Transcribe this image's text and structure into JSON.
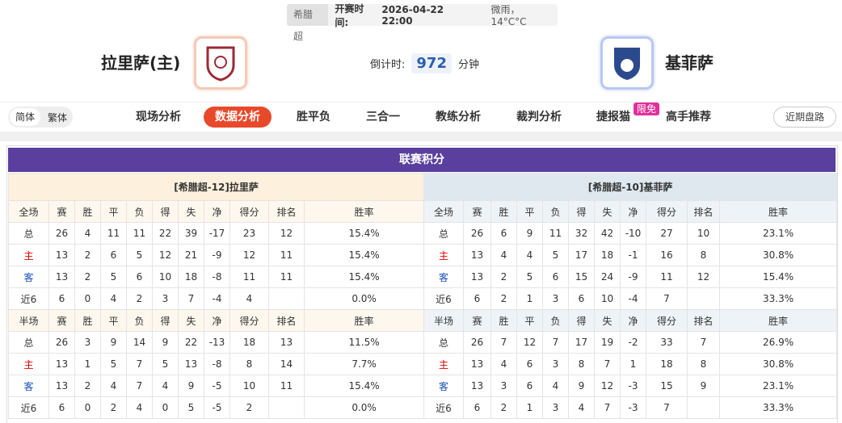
{
  "header": {
    "league": "希腊超",
    "kickoff_label": "开赛时间:",
    "kickoff_time": "2026-04-22 22:00",
    "weather": "微雨， 14°C°C",
    "home_team": "拉里萨(主)",
    "away_team": "基菲萨",
    "countdown_label": "倒计时:",
    "countdown_value": "972",
    "countdown_unit": "分钟"
  },
  "nav": {
    "languages": [
      "简体",
      "繁体"
    ],
    "tabs": [
      "现场分析",
      "数据分析",
      "胜平负",
      "三合一",
      "教练分析",
      "裁判分析",
      "捷报猫",
      "高手推荐"
    ],
    "tab_badge": "限免",
    "recent_button": "近期盘路"
  },
  "standings": {
    "title": "联赛积分",
    "panels": [
      {
        "title": "[希腊超-12]拉里萨",
        "tables": [
          {
            "header": [
              "全场",
              "赛",
              "胜",
              "平",
              "负",
              "得",
              "失",
              "净",
              "得分",
              "排名",
              "胜率"
            ],
            "rows": [
              [
                "总",
                "26",
                "4",
                "11",
                "11",
                "22",
                "39",
                "-17",
                "23",
                "12",
                "15.4%"
              ],
              [
                "主",
                "13",
                "2",
                "6",
                "5",
                "12",
                "21",
                "-9",
                "12",
                "11",
                "15.4%"
              ],
              [
                "客",
                "13",
                "2",
                "5",
                "6",
                "10",
                "18",
                "-8",
                "11",
                "11",
                "15.4%"
              ],
              [
                "近6",
                "6",
                "0",
                "4",
                "2",
                "3",
                "7",
                "-4",
                "4",
                null,
                "0.0%"
              ]
            ]
          },
          {
            "header": [
              "半场",
              "赛",
              "胜",
              "平",
              "负",
              "得",
              "失",
              "净",
              "得分",
              "排名",
              "胜率"
            ],
            "rows": [
              [
                "总",
                "26",
                "3",
                "9",
                "14",
                "9",
                "22",
                "-13",
                "18",
                "13",
                "11.5%"
              ],
              [
                "主",
                "13",
                "1",
                "5",
                "7",
                "5",
                "13",
                "-8",
                "8",
                "14",
                "7.7%"
              ],
              [
                "客",
                "13",
                "2",
                "4",
                "7",
                "4",
                "9",
                "-5",
                "10",
                "11",
                "15.4%"
              ],
              [
                "近6",
                "6",
                "0",
                "2",
                "4",
                "0",
                "5",
                "-5",
                "2",
                null,
                "0.0%"
              ]
            ]
          }
        ]
      },
      {
        "title": "[希腊超-10]基菲萨",
        "tables": [
          {
            "header": [
              "全场",
              "赛",
              "胜",
              "平",
              "负",
              "得",
              "失",
              "净",
              "得分",
              "排名",
              "胜率"
            ],
            "rows": [
              [
                "总",
                "26",
                "6",
                "9",
                "11",
                "32",
                "42",
                "-10",
                "27",
                "10",
                "23.1%"
              ],
              [
                "主",
                "13",
                "4",
                "4",
                "5",
                "17",
                "18",
                "-1",
                "16",
                "8",
                "30.8%"
              ],
              [
                "客",
                "13",
                "2",
                "5",
                "6",
                "15",
                "24",
                "-9",
                "11",
                "12",
                "15.4%"
              ],
              [
                "近6",
                "6",
                "2",
                "1",
                "3",
                "6",
                "10",
                "-4",
                "7",
                null,
                "33.3%"
              ]
            ]
          },
          {
            "header": [
              "半场",
              "赛",
              "胜",
              "平",
              "负",
              "得",
              "失",
              "净",
              "得分",
              "排名",
              "胜率"
            ],
            "rows": [
              [
                "总",
                "26",
                "7",
                "12",
                "7",
                "17",
                "19",
                "-2",
                "33",
                "7",
                "26.9%"
              ],
              [
                "主",
                "13",
                "4",
                "6",
                "3",
                "8",
                "7",
                "1",
                "18",
                "8",
                "30.8%"
              ],
              [
                "客",
                "13",
                "3",
                "6",
                "4",
                "9",
                "12",
                "-3",
                "15",
                "9",
                "23.1%"
              ],
              [
                "近6",
                "6",
                "2",
                "1",
                "3",
                "4",
                "7",
                "-3",
                "7",
                null,
                "33.3%"
              ]
            ]
          }
        ]
      }
    ]
  }
}
